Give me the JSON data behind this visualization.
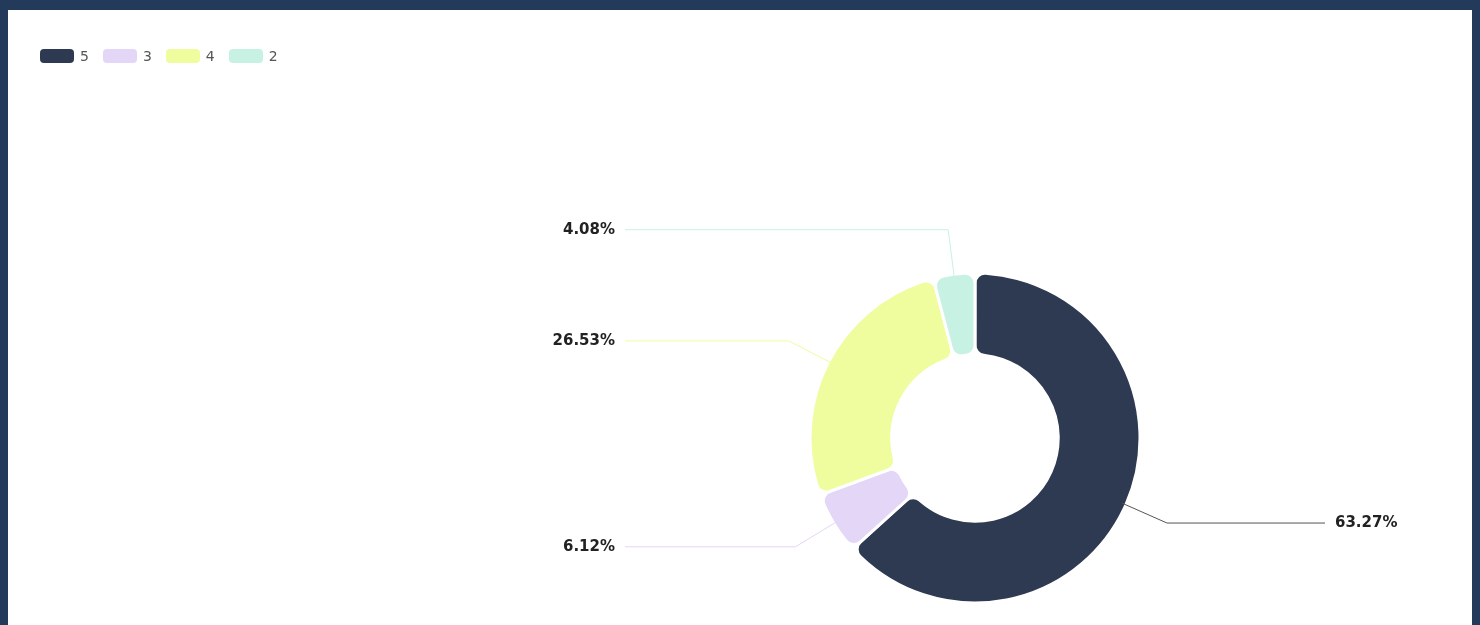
{
  "chart_data": {
    "type": "donut",
    "categories": [
      "5",
      "3",
      "4",
      "2"
    ],
    "values": [
      63.27,
      6.12,
      26.53,
      4.08
    ],
    "colors": [
      "#2e3a52",
      "#e4d6f7",
      "#effd9e",
      "#c6f1e3"
    ],
    "value_labels": [
      "63.27%",
      "6.12%",
      "26.53%",
      "4.08%"
    ],
    "legend": "top left"
  }
}
